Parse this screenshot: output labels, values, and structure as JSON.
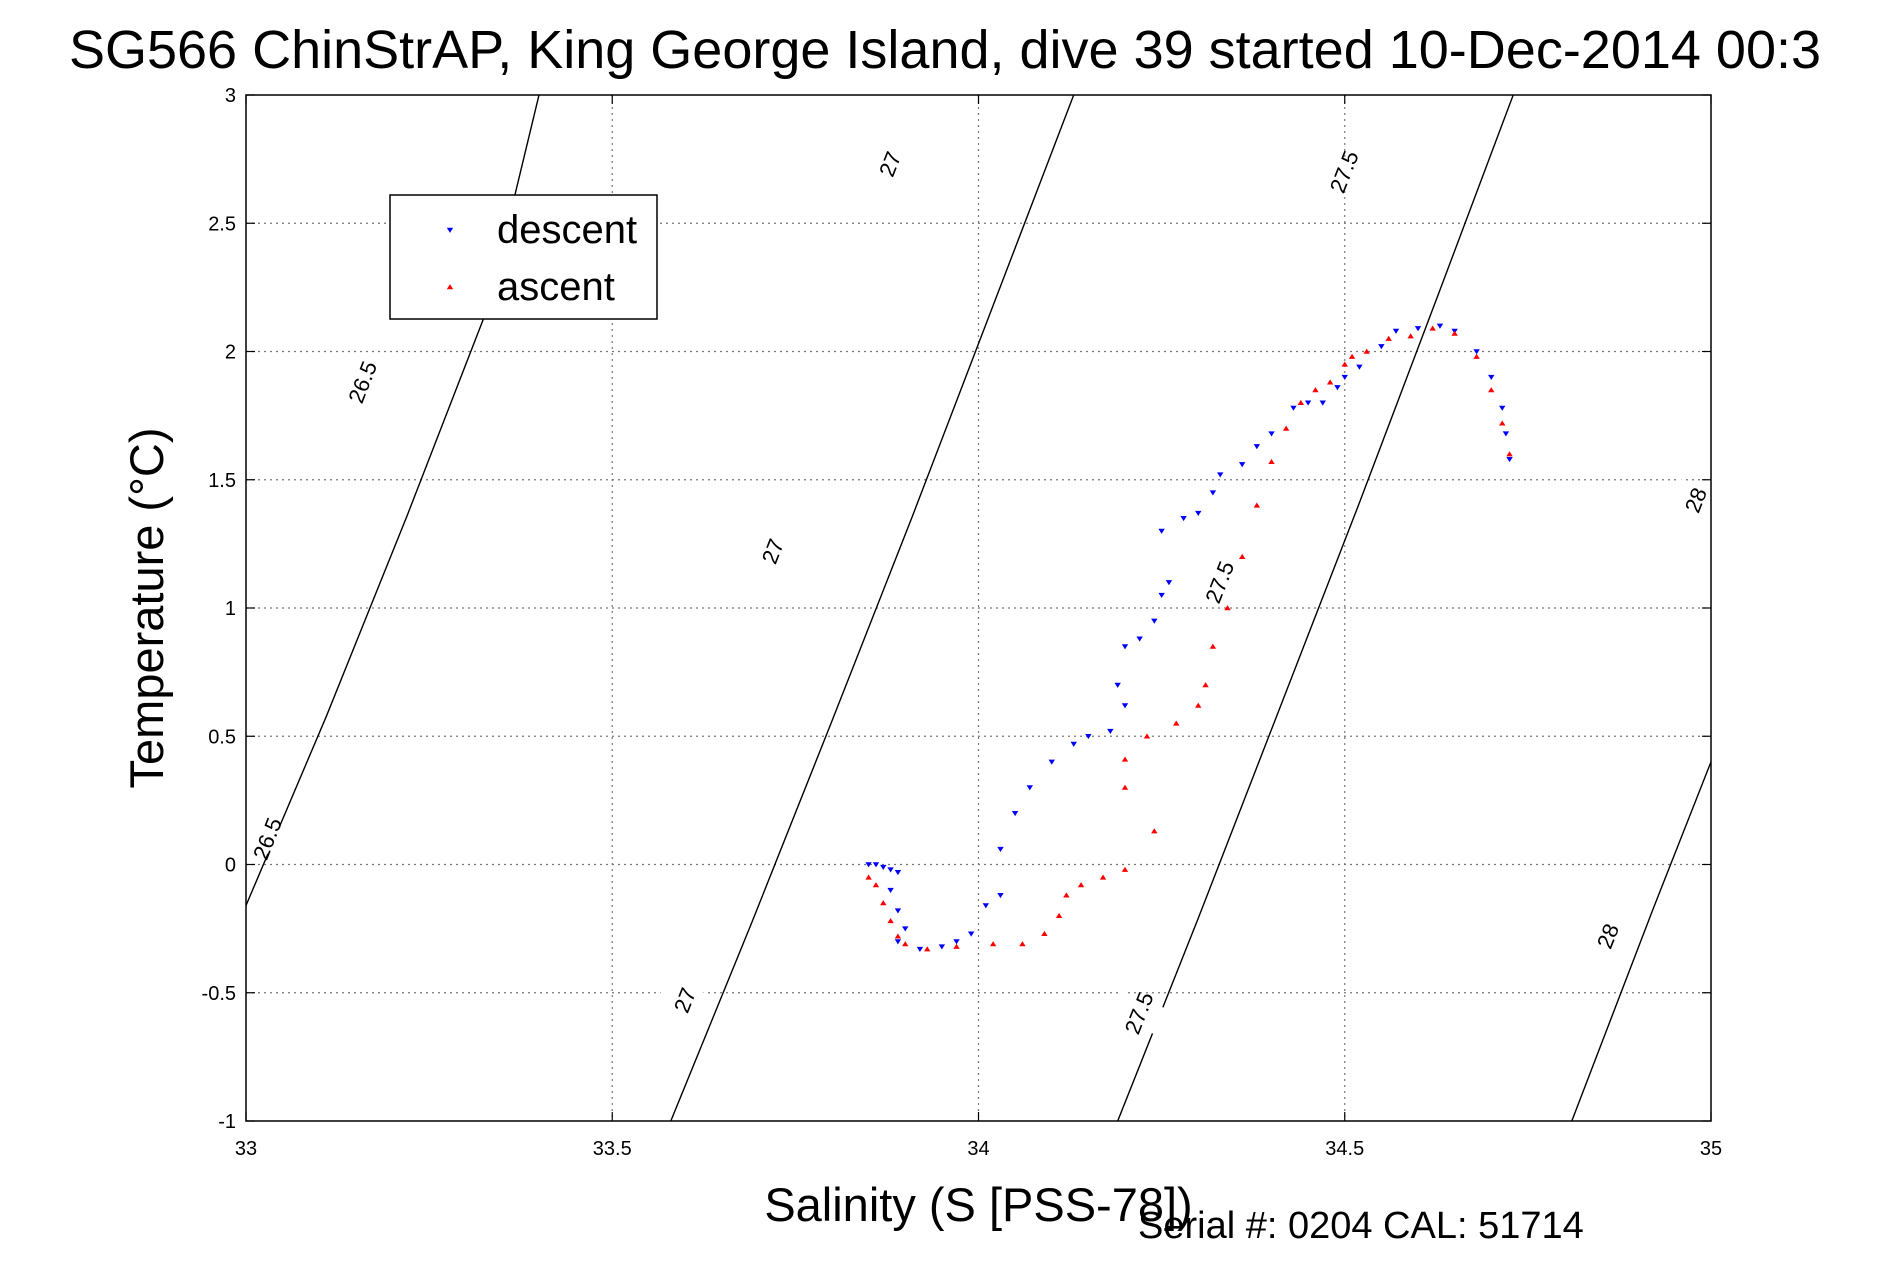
{
  "chart_data": {
    "type": "scatter",
    "title": "SG566 ChinStrAP, King George Island, dive 39 started 10-Dec-2014 00:3",
    "xlabel": "Salinity (S [PSS-78])",
    "ylabel": "Temperature (°C)",
    "xlim": [
      33,
      35
    ],
    "ylim": [
      -1,
      3
    ],
    "x_ticks": [
      "33",
      "33.5",
      "34",
      "34.5",
      "35"
    ],
    "y_ticks": [
      "-1",
      "-0.5",
      "0",
      "0.5",
      "1",
      "1.5",
      "2",
      "2.5",
      "3"
    ],
    "grid": true,
    "legend_position": "top-left",
    "footer": "Serial #: 0204  CAL: 51714",
    "density_contours": [
      {
        "label": "26.5",
        "points": [
          [
            33.0,
            -0.16
          ],
          [
            33.11,
            0.58
          ],
          [
            33.22,
            1.36
          ],
          [
            33.33,
            2.17
          ],
          [
            33.4,
            3.0
          ]
        ],
        "label_positions": [
          [
            33.03,
            0.1
          ],
          [
            33.16,
            1.88
          ]
        ]
      },
      {
        "label": "27",
        "points": [
          [
            33.58,
            -1.0
          ],
          [
            33.69,
            -0.23
          ],
          [
            33.8,
            0.56
          ],
          [
            33.91,
            1.36
          ],
          [
            34.02,
            2.18
          ],
          [
            34.13,
            3.0
          ]
        ],
        "label_positions": [
          [
            33.6,
            -0.53
          ],
          [
            33.72,
            1.22
          ],
          [
            33.88,
            2.73
          ]
        ]
      },
      {
        "label": "27.5",
        "points": [
          [
            34.19,
            -1.0
          ],
          [
            34.3,
            -0.21
          ],
          [
            34.41,
            0.6
          ],
          [
            34.52,
            1.41
          ],
          [
            34.63,
            2.24
          ],
          [
            34.73,
            3.0
          ]
        ],
        "label_positions": [
          [
            34.22,
            -0.58
          ],
          [
            34.33,
            1.1
          ],
          [
            34.5,
            2.7
          ]
        ]
      },
      {
        "label": "28",
        "points": [
          [
            34.81,
            -1.0
          ],
          [
            34.92,
            -0.18
          ],
          [
            35.0,
            0.4
          ],
          [
            35.03,
            0.62
          ],
          [
            35.14,
            1.45
          ]
        ],
        "label_positions": [
          [
            34.86,
            -0.28
          ],
          [
            34.98,
            1.42
          ]
        ]
      }
    ],
    "series": [
      {
        "name": "descent",
        "color": "#0000ff",
        "marker": "triangle-down",
        "points": [
          [
            33.85,
            0.0
          ],
          [
            33.86,
            0.0
          ],
          [
            33.87,
            -0.01
          ],
          [
            33.88,
            -0.02
          ],
          [
            33.89,
            -0.03
          ],
          [
            33.88,
            -0.1
          ],
          [
            33.89,
            -0.18
          ],
          [
            33.9,
            -0.25
          ],
          [
            33.89,
            -0.3
          ],
          [
            33.92,
            -0.33
          ],
          [
            33.95,
            -0.32
          ],
          [
            33.97,
            -0.3
          ],
          [
            33.99,
            -0.27
          ],
          [
            34.01,
            -0.16
          ],
          [
            34.03,
            -0.12
          ],
          [
            34.03,
            0.06
          ],
          [
            34.05,
            0.2
          ],
          [
            34.07,
            0.3
          ],
          [
            34.1,
            0.4
          ],
          [
            34.13,
            0.47
          ],
          [
            34.15,
            0.5
          ],
          [
            34.18,
            0.52
          ],
          [
            34.2,
            0.62
          ],
          [
            34.19,
            0.7
          ],
          [
            34.2,
            0.85
          ],
          [
            34.22,
            0.88
          ],
          [
            34.24,
            0.95
          ],
          [
            34.25,
            1.05
          ],
          [
            34.26,
            1.1
          ],
          [
            34.25,
            1.3
          ],
          [
            34.28,
            1.35
          ],
          [
            34.3,
            1.37
          ],
          [
            34.32,
            1.45
          ],
          [
            34.33,
            1.52
          ],
          [
            34.36,
            1.56
          ],
          [
            34.38,
            1.63
          ],
          [
            34.4,
            1.68
          ],
          [
            34.43,
            1.78
          ],
          [
            34.45,
            1.8
          ],
          [
            34.47,
            1.8
          ],
          [
            34.49,
            1.86
          ],
          [
            34.5,
            1.9
          ],
          [
            34.52,
            1.94
          ],
          [
            34.55,
            2.02
          ],
          [
            34.57,
            2.08
          ],
          [
            34.6,
            2.09
          ],
          [
            34.63,
            2.1
          ],
          [
            34.65,
            2.08
          ],
          [
            34.68,
            2.0
          ],
          [
            34.7,
            1.9
          ],
          [
            34.715,
            1.78
          ],
          [
            34.72,
            1.68
          ],
          [
            34.725,
            1.58
          ]
        ]
      },
      {
        "name": "ascent",
        "color": "#ff0000",
        "marker": "triangle-up",
        "points": [
          [
            33.85,
            -0.05
          ],
          [
            33.86,
            -0.08
          ],
          [
            33.87,
            -0.15
          ],
          [
            33.88,
            -0.22
          ],
          [
            33.89,
            -0.28
          ],
          [
            33.9,
            -0.31
          ],
          [
            33.93,
            -0.33
          ],
          [
            33.97,
            -0.32
          ],
          [
            34.02,
            -0.31
          ],
          [
            34.06,
            -0.31
          ],
          [
            34.09,
            -0.27
          ],
          [
            34.11,
            -0.2
          ],
          [
            34.12,
            -0.12
          ],
          [
            34.14,
            -0.08
          ],
          [
            34.17,
            -0.05
          ],
          [
            34.2,
            -0.02
          ],
          [
            34.24,
            0.13
          ],
          [
            34.2,
            0.3
          ],
          [
            34.2,
            0.41
          ],
          [
            34.23,
            0.5
          ],
          [
            34.27,
            0.55
          ],
          [
            34.3,
            0.62
          ],
          [
            34.31,
            0.7
          ],
          [
            34.32,
            0.85
          ],
          [
            34.34,
            1.0
          ],
          [
            34.36,
            1.2
          ],
          [
            34.38,
            1.4
          ],
          [
            34.4,
            1.57
          ],
          [
            34.42,
            1.7
          ],
          [
            34.44,
            1.8
          ],
          [
            34.46,
            1.85
          ],
          [
            34.48,
            1.88
          ],
          [
            34.5,
            1.95
          ],
          [
            34.51,
            1.98
          ],
          [
            34.53,
            2.0
          ],
          [
            34.56,
            2.05
          ],
          [
            34.59,
            2.06
          ],
          [
            34.62,
            2.09
          ],
          [
            34.65,
            2.07
          ],
          [
            34.68,
            1.98
          ],
          [
            34.7,
            1.85
          ],
          [
            34.715,
            1.72
          ],
          [
            34.725,
            1.6
          ]
        ]
      }
    ]
  }
}
